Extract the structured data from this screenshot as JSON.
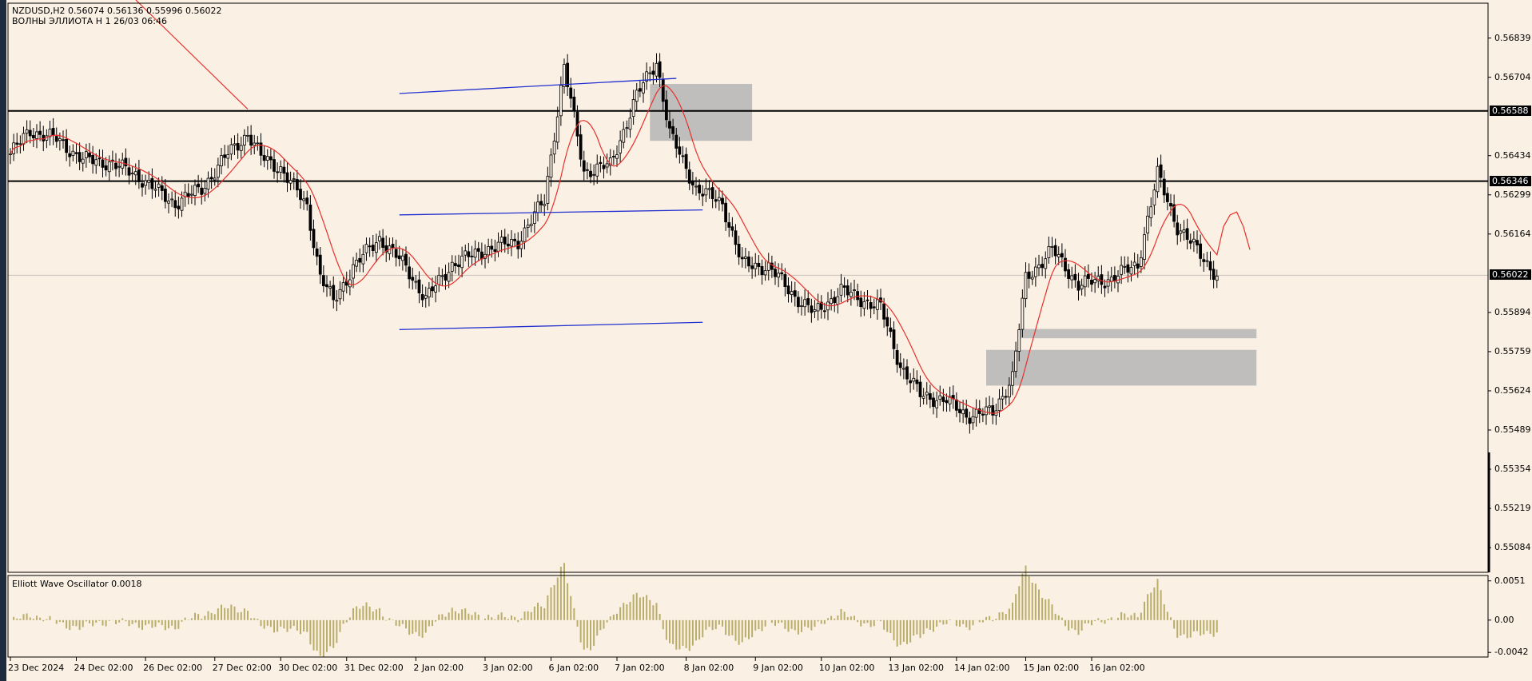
{
  "header": {
    "symbol_line": "NZDUSD,H2  0.56074 0.56136 0.55996 0.56022",
    "indicator_line": "ВОЛНЫ ЭЛЛИОТА H 1 26/03 06:46"
  },
  "oscillator": {
    "label": "Elliott Wave Oscillator 0.0018"
  },
  "price_axis": {
    "ticks": [
      "0.56839",
      "0.56704",
      "0.56434",
      "0.56299",
      "0.56164",
      "0.55894",
      "0.55759",
      "0.55624",
      "0.55489",
      "0.55354",
      "0.55219",
      "0.55084"
    ],
    "tags": {
      "upper": "0.56588",
      "lower": "0.56346",
      "current": "0.56022"
    }
  },
  "osc_axis": {
    "ticks": [
      "0.0051",
      "0.00",
      "-0.0042"
    ]
  },
  "time_axis": {
    "labels": [
      "23 Dec 2024",
      "24 Dec 02:00",
      "26 Dec 02:00",
      "27 Dec 02:00",
      "30 Dec 02:00",
      "31 Dec 02:00",
      "2 Jan 02:00",
      "3 Jan 02:00",
      "6 Jan 02:00",
      "7 Jan 02:00",
      "8 Jan 02:00",
      "9 Jan 02:00",
      "10 Jan 02:00",
      "13 Jan 02:00",
      "14 Jan 02:00",
      "15 Jan 02:00",
      "16 Jan 02:00"
    ]
  },
  "colors": {
    "background": "#fbf0e4",
    "ma": "#e8302c",
    "channel": "#2130d0",
    "zone": "#b8b8b8",
    "osc": "#b8ae6a"
  },
  "chart_data": {
    "type": "candlestick",
    "price_anchors": [
      [
        0,
        0.5644
      ],
      [
        6,
        0.5652
      ],
      [
        14,
        0.5649
      ],
      [
        22,
        0.5642
      ],
      [
        30,
        0.5641
      ],
      [
        38,
        0.5637
      ],
      [
        46,
        0.563
      ],
      [
        50,
        0.5627
      ],
      [
        58,
        0.5632
      ],
      [
        66,
        0.5644
      ],
      [
        72,
        0.5651
      ],
      [
        76,
        0.5643
      ],
      [
        82,
        0.5639
      ],
      [
        90,
        0.5626
      ],
      [
        94,
        0.5602
      ],
      [
        98,
        0.5593
      ],
      [
        104,
        0.5605
      ],
      [
        112,
        0.5615
      ],
      [
        120,
        0.5605
      ],
      [
        126,
        0.5594
      ],
      [
        134,
        0.5606
      ],
      [
        144,
        0.5611
      ],
      [
        154,
        0.5614
      ],
      [
        162,
        0.5628
      ],
      [
        168,
        0.5674
      ],
      [
        174,
        0.5638
      ],
      [
        182,
        0.564
      ],
      [
        190,
        0.5664
      ],
      [
        196,
        0.5676
      ],
      [
        200,
        0.5651
      ],
      [
        208,
        0.5632
      ],
      [
        216,
        0.5627
      ],
      [
        222,
        0.5606
      ],
      [
        230,
        0.5605
      ],
      [
        238,
        0.5595
      ],
      [
        244,
        0.5589
      ],
      [
        252,
        0.5597
      ],
      [
        264,
        0.5591
      ],
      [
        270,
        0.5571
      ],
      [
        276,
        0.5561
      ],
      [
        284,
        0.5559
      ],
      [
        290,
        0.5554
      ],
      [
        298,
        0.5555
      ],
      [
        304,
        0.5567
      ],
      [
        308,
        0.5601
      ],
      [
        316,
        0.5611
      ],
      [
        324,
        0.5599
      ],
      [
        334,
        0.5601
      ],
      [
        342,
        0.5606
      ],
      [
        348,
        0.5637
      ],
      [
        354,
        0.5619
      ],
      [
        362,
        0.5608
      ],
      [
        366,
        0.5602
      ]
    ],
    "ma_extension": [
      0.5619,
      0.5623,
      0.5624,
      0.5619,
      0.5611
    ],
    "horizontal_lines": [
      0.56588,
      0.56346,
      0.56022
    ],
    "zones": [
      {
        "from": 194,
        "to": 225,
        "top": 0.56681,
        "bottom": 0.56485
      },
      {
        "from": 306,
        "to": 378,
        "top": 0.55837,
        "bottom": 0.55805
      },
      {
        "from": 296,
        "to": 378,
        "top": 0.55765,
        "bottom": 0.55642
      }
    ],
    "channel_lines": [
      {
        "from": 118,
        "to": 202,
        "p1": 0.56648,
        "p2": 0.567
      },
      {
        "from": 118,
        "to": 210,
        "p1": 0.5623,
        "p2": 0.56247
      },
      {
        "from": 118,
        "to": 210,
        "p1": 0.55835,
        "p2": 0.5586
      }
    ],
    "trend_line": {
      "from_price": 0.5697,
      "to_index": 72,
      "to_price": 0.56594
    },
    "osc_range": [
      -0.0048,
      0.0058
    ],
    "osc_axis_values": [
      0.0051,
      0,
      -0.0042
    ],
    "price_axis_values": [
      0.56839,
      0.56704,
      0.56434,
      0.56299,
      0.56164,
      0.55894,
      0.55759,
      0.55624,
      0.55489,
      0.55354,
      0.55219,
      0.55084
    ],
    "time_label_indices": [
      0,
      20,
      41,
      62,
      82,
      102,
      123,
      144,
      164,
      184,
      205,
      226,
      246,
      267,
      287,
      308,
      328
    ],
    "bars": 367,
    "price_range": [
      0.54999,
      0.56959
    ]
  }
}
